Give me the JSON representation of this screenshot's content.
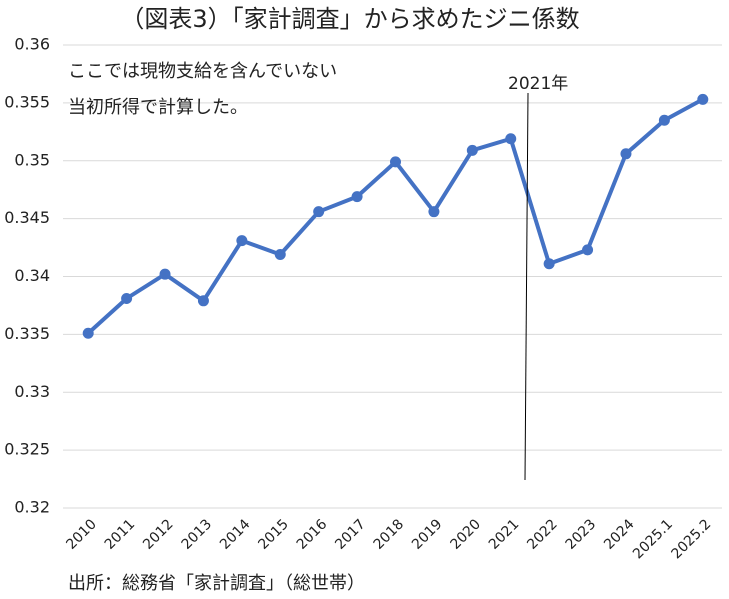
{
  "chart_data": {
    "type": "line",
    "title": "（図表3）「家計調査」から求めたジニ係数",
    "annotations": [
      "ここでは現物支給を含んでいない",
      "当初所得で計算した。",
      "2021年"
    ],
    "source": "出所：総務省「家計調査」（総世帯）",
    "categories": [
      "2010",
      "2011",
      "2012",
      "2013",
      "2014",
      "2015",
      "2016",
      "2017",
      "2018",
      "2019",
      "2020",
      "2021",
      "2022",
      "2023",
      "2024",
      "2025.1",
      "2025.2"
    ],
    "values": [
      0.3351,
      0.3381,
      0.3402,
      0.3379,
      0.3431,
      0.3419,
      0.3456,
      0.3469,
      0.3499,
      0.3456,
      0.3509,
      0.3519,
      0.3411,
      0.3423,
      0.3506,
      0.3535,
      0.3553
    ],
    "color": "#4472c4",
    "ylim": [
      0.32,
      0.36
    ],
    "yticks": [
      0.32,
      0.325,
      0.33,
      0.335,
      0.34,
      0.345,
      0.35,
      0.355,
      0.36
    ],
    "grid": true
  }
}
